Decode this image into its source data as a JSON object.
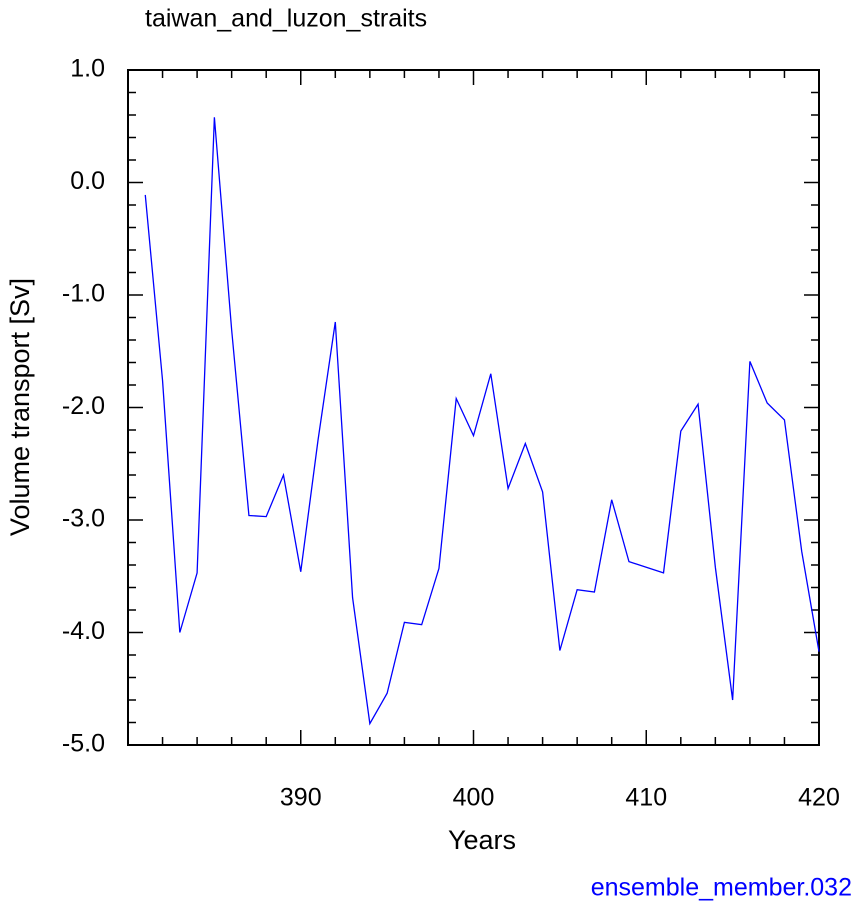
{
  "chart_data": {
    "type": "line",
    "title": "taiwan_and_luzon_straits",
    "x_label": "Years",
    "y_label": "Volume transport [Sv]",
    "annotation": "ensemble_member.032",
    "x": [
      381,
      382,
      383,
      384,
      385,
      386,
      387,
      388,
      389,
      390,
      391,
      392,
      393,
      394,
      395,
      396,
      397,
      398,
      399,
      400,
      401,
      402,
      403,
      404,
      405,
      406,
      407,
      408,
      409,
      410,
      411,
      412,
      413,
      414,
      415,
      416,
      417,
      418,
      419,
      420
    ],
    "series": [
      {
        "name": "ensemble_member.032",
        "color": "#0000ff",
        "values": [
          -0.11,
          -1.76,
          -4.0,
          -3.47,
          0.58,
          -1.31,
          -2.96,
          -2.97,
          -2.6,
          -3.46,
          -2.29,
          -1.24,
          -3.69,
          -4.81,
          -4.54,
          -3.91,
          -3.93,
          -3.43,
          -1.92,
          -2.25,
          -1.7,
          -2.72,
          -2.32,
          -2.75,
          -4.16,
          -3.62,
          -3.64,
          -2.82,
          -3.37,
          -3.42,
          -3.47,
          -2.21,
          -1.97,
          -3.42,
          -4.6,
          -1.59,
          -1.96,
          -2.11,
          -3.28,
          -4.17
        ]
      }
    ],
    "xlim": [
      380,
      420
    ],
    "ylim": [
      -5,
      1
    ],
    "xticks": [
      390,
      400,
      410,
      420
    ],
    "yticks": [
      {
        "value": 1,
        "label": "1.0"
      },
      {
        "value": 0,
        "label": "0.0"
      },
      {
        "value": -1,
        "label": "-1.0"
      },
      {
        "value": -2,
        "label": "-2.0"
      },
      {
        "value": -3,
        "label": "-3.0"
      },
      {
        "value": -4,
        "label": "-4.0"
      },
      {
        "value": -5,
        "label": "-5.0"
      }
    ],
    "grid": false
  }
}
